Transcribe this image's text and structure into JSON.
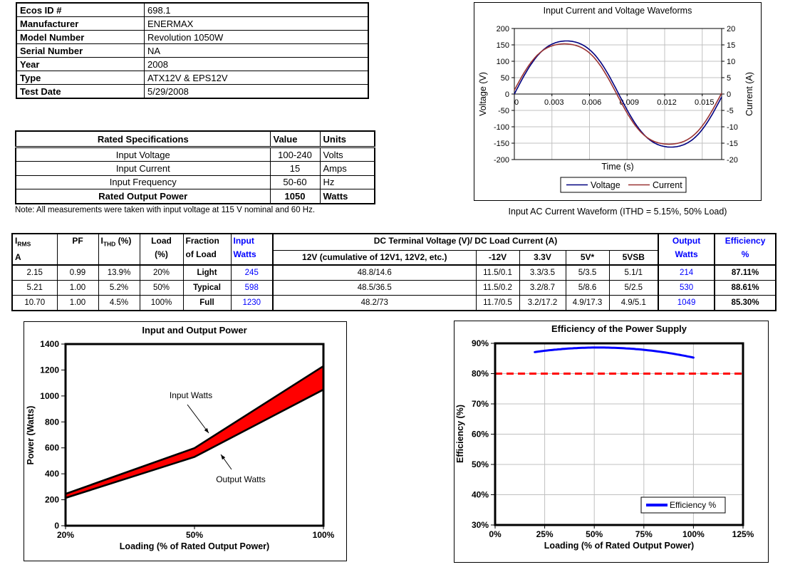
{
  "info_table": {
    "rows": [
      {
        "label": "Ecos ID #",
        "value": "698.1"
      },
      {
        "label": "Manufacturer",
        "value": "ENERMAX"
      },
      {
        "label": "Model Number",
        "value": "Revolution 1050W"
      },
      {
        "label": "Serial Number",
        "value": "NA"
      },
      {
        "label": "Year",
        "value": "2008"
      },
      {
        "label": "Type",
        "value": "ATX12V & EPS12V"
      },
      {
        "label": "Test Date",
        "value": "5/29/2008"
      }
    ]
  },
  "rated_table": {
    "headers": [
      "Rated Specifications",
      "Value",
      "Units"
    ],
    "rows": [
      {
        "name": "Input Voltage",
        "value": "100-240",
        "units": "Volts"
      },
      {
        "name": "Input Current",
        "value": "15",
        "units": "Amps"
      },
      {
        "name": "Input Frequency",
        "value": "50-60",
        "units": "Hz"
      },
      {
        "name": "Rated Output Power",
        "value": "1050",
        "units": "Watts"
      }
    ]
  },
  "note": "Note: All measurements were taken with input voltage at 115 V nominal and 60 Hz.",
  "waveform_caption": "Input AC Current Waveform (ITHD = 5.15%, 50% Load)",
  "load_table": {
    "header": {
      "irms_i": "I",
      "irms_sub": "RMS",
      "irms_unit": "A",
      "pf": "PF",
      "ithd_i": "I",
      "ithd_sub": "THD",
      "ithd_pct": " (%)",
      "load1": "Load",
      "load2": "(%)",
      "frac1": "Fraction",
      "frac2": "of Load",
      "in1": "Input",
      "in2": "Watts",
      "dc_span": "DC Terminal Voltage (V)/ DC Load Current (A)",
      "c12": "12V (cumulative of 12V1, 12V2, etc.)",
      "cn12": "-12V",
      "c33": "3.3V",
      "c5": "5V*",
      "c5sb": "5VSB",
      "out1": "Output",
      "out2": "Watts",
      "eff1": "Efficiency",
      "eff2": "%"
    },
    "rows": [
      [
        "2.15",
        "0.99",
        "13.9%",
        "20%",
        "Light",
        "245",
        "48.8/14.6",
        "11.5/0.1",
        "3.3/3.5",
        "5/3.5",
        "5.1/1",
        "214",
        "87.11%"
      ],
      [
        "5.21",
        "1.00",
        "5.2%",
        "50%",
        "Typical",
        "598",
        "48.5/36.5",
        "11.5/0.2",
        "3.2/8.7",
        "5/8.6",
        "5/2.5",
        "530",
        "88.61%"
      ],
      [
        "10.70",
        "1.00",
        "4.5%",
        "100%",
        "Full",
        "1230",
        "48.2/73",
        "11.7/0.5",
        "3.2/17.2",
        "4.9/17.3",
        "4.9/5.1",
        "1049",
        "85.30%"
      ]
    ]
  },
  "colors": {
    "accent_blue": "#0000FF",
    "voltage_navy": "#000080",
    "current_dark_red": "#993333",
    "band_red": "#FF0000",
    "reference_red": "#FF0000",
    "gridline_gray": "#C0C0C0"
  },
  "chart_data": [
    {
      "type": "line",
      "title": "Input Current and Voltage Waveforms",
      "xlabel": "Time (s)",
      "ylabel_left": "Voltage (V)",
      "ylabel_right": "Current (A)",
      "xlim": [
        0,
        0.01655
      ],
      "x_ticks": [
        0,
        0.003,
        0.006,
        0.009,
        0.012,
        0.015
      ],
      "x_tick_labels": [
        "0",
        "0.003",
        "0.006",
        "0.009",
        "0.012",
        "0.015"
      ],
      "ylim_left": [
        -200,
        200
      ],
      "y_ticks_left": [
        200,
        150,
        100,
        50,
        0,
        -50,
        -100,
        -150,
        -200
      ],
      "ylim_right": [
        -20,
        20
      ],
      "y_ticks_right": [
        20,
        15,
        10,
        5,
        0,
        -5,
        -10,
        -15,
        -20
      ],
      "grid": true,
      "legend_position": "bottom",
      "series": [
        {
          "name": "Voltage",
          "axis": "left",
          "amplitude": 162,
          "frequency_hz": 60,
          "phase": 0,
          "flatten": 0.05,
          "color": "#000080"
        },
        {
          "name": "Current",
          "axis": "right",
          "amplitude": 15.3,
          "frequency_hz": 60,
          "phase": 0.06,
          "flatten": 0.06,
          "color": "#993333"
        }
      ]
    },
    {
      "type": "area",
      "title": "Input and Output Power",
      "xlabel": "Loading (% of Rated Output Power)",
      "ylabel": "Power (Watts)",
      "categories": [
        "20%",
        "50%",
        "100%"
      ],
      "ylim": [
        0,
        1400
      ],
      "y_step": 200,
      "grid": false,
      "band_fill": "#FF0000",
      "series": [
        {
          "name": "Input Watts",
          "values": [
            245,
            598,
            1230
          ]
        },
        {
          "name": "Output Watts",
          "values": [
            214,
            530,
            1049
          ]
        }
      ],
      "annotations": [
        "Input Watts",
        "Output Watts"
      ]
    },
    {
      "type": "line",
      "title": "Efficiency of the Power Supply",
      "xlabel": "Loading (% of Rated Output Power)",
      "ylabel": "Efficiency (%)",
      "xlim": [
        0,
        125
      ],
      "x_ticks": [
        0,
        25,
        50,
        75,
        100,
        125
      ],
      "x_tick_labels": [
        "0%",
        "25%",
        "50%",
        "75%",
        "100%",
        "125%"
      ],
      "ylim": [
        30,
        90
      ],
      "y_ticks": [
        90,
        80,
        70,
        60,
        50,
        40,
        30
      ],
      "y_tick_labels": [
        "90%",
        "80%",
        "70%",
        "60%",
        "50%",
        "40%",
        "30%"
      ],
      "grid": true,
      "legend": "Efficiency %",
      "legend_position": "inside-bottom-right",
      "series": [
        {
          "name": "Efficiency %",
          "color": "#0000FF",
          "x": [
            20,
            50,
            100
          ],
          "y": [
            87.11,
            88.61,
            85.3
          ]
        }
      ],
      "reference_line": {
        "y": 80,
        "color": "#FF0000",
        "style": "dashed"
      }
    }
  ]
}
